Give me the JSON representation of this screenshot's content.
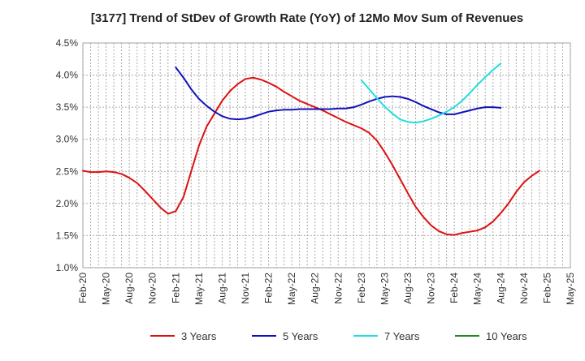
{
  "chart_data": {
    "type": "line",
    "title": "[3177]  Trend of StDev of Growth Rate (YoY) of 12Mo Mov Sum of Revenues",
    "xlabel": "",
    "ylabel": "",
    "ylim": [
      1.0,
      4.5
    ],
    "y_ticks": [
      1.0,
      1.5,
      2.0,
      2.5,
      3.0,
      3.5,
      4.0,
      4.5
    ],
    "y_tick_labels": [
      "1.0%",
      "1.5%",
      "2.0%",
      "2.5%",
      "3.0%",
      "3.5%",
      "4.0%",
      "4.5%"
    ],
    "x_tick_labels": [
      "Feb-20",
      "May-20",
      "Aug-20",
      "Nov-20",
      "Feb-21",
      "May-21",
      "Aug-21",
      "Nov-21",
      "Feb-22",
      "May-22",
      "Aug-22",
      "Nov-22",
      "Feb-23",
      "May-23",
      "Aug-23",
      "Nov-23",
      "Feb-24",
      "May-24",
      "Aug-24",
      "Nov-24",
      "Feb-25",
      "May-25"
    ],
    "grid": true,
    "legend_position": "bottom",
    "series": [
      {
        "name": "3 Years",
        "color": "#dd1111",
        "start_index": 0,
        "values": [
          2.51,
          2.49,
          2.49,
          2.5,
          2.49,
          2.46,
          2.4,
          2.32,
          2.2,
          2.07,
          1.94,
          1.84,
          1.88,
          2.1,
          2.5,
          2.9,
          3.2,
          3.4,
          3.6,
          3.75,
          3.86,
          3.94,
          3.96,
          3.93,
          3.88,
          3.82,
          3.74,
          3.67,
          3.6,
          3.55,
          3.5,
          3.45,
          3.39,
          3.33,
          3.27,
          3.22,
          3.17,
          3.1,
          2.98,
          2.8,
          2.6,
          2.38,
          2.16,
          1.95,
          1.79,
          1.66,
          1.57,
          1.52,
          1.51,
          1.54,
          1.56,
          1.58,
          1.63,
          1.72,
          1.85,
          2.0,
          2.18,
          2.33,
          2.43,
          2.51
        ]
      },
      {
        "name": "5 Years",
        "color": "#1111bb",
        "start_index": 12,
        "values": [
          4.12,
          3.96,
          3.78,
          3.63,
          3.52,
          3.43,
          3.36,
          3.32,
          3.31,
          3.32,
          3.35,
          3.39,
          3.43,
          3.45,
          3.46,
          3.46,
          3.47,
          3.47,
          3.47,
          3.47,
          3.47,
          3.48,
          3.48,
          3.5,
          3.54,
          3.59,
          3.63,
          3.66,
          3.67,
          3.66,
          3.63,
          3.58,
          3.52,
          3.47,
          3.42,
          3.39,
          3.39,
          3.42,
          3.45,
          3.48,
          3.5,
          3.5,
          3.49
        ]
      },
      {
        "name": "7 Years",
        "color": "#22dddd",
        "start_index": 36,
        "values": [
          3.92,
          3.78,
          3.64,
          3.51,
          3.4,
          3.31,
          3.27,
          3.26,
          3.28,
          3.32,
          3.37,
          3.43,
          3.5,
          3.6,
          3.72,
          3.85,
          3.97,
          4.08,
          4.18
        ]
      },
      {
        "name": "10 Years",
        "color": "#228822",
        "start_index": 0,
        "values": []
      }
    ]
  }
}
